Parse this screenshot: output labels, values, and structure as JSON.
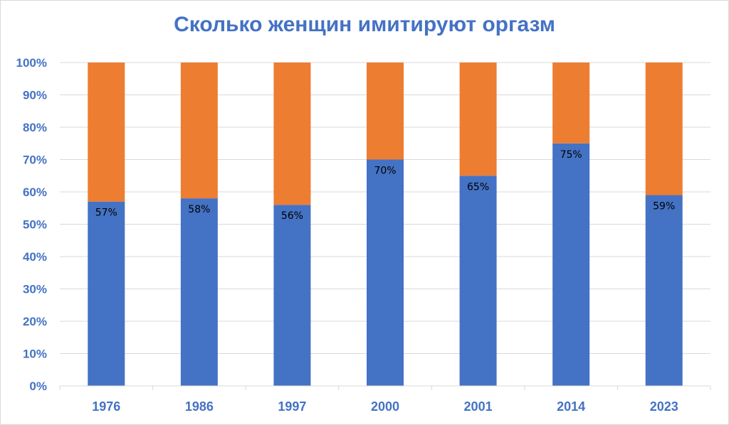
{
  "chart_data": {
    "type": "bar",
    "stacked": true,
    "title": "Сколько женщин имитируют оргазм",
    "xlabel": "",
    "ylabel": "",
    "ylim": [
      0,
      100
    ],
    "ytick_step": 10,
    "grid": true,
    "legend": "none",
    "categories": [
      "1976",
      "1986",
      "1997",
      "2000",
      "2001",
      "2014",
      "2023"
    ],
    "series": [
      {
        "color": "#4472c4",
        "values": [
          57,
          58,
          56,
          70,
          65,
          75,
          59
        ],
        "labels": [
          "57%",
          "58%",
          "56%",
          "70%",
          "65%",
          "75%",
          "59%"
        ]
      },
      {
        "color": "#ed7d31",
        "values": [
          43,
          42,
          44,
          30,
          35,
          25,
          41
        ]
      }
    ],
    "ytick_labels": [
      "0%",
      "10%",
      "20%",
      "30%",
      "40%",
      "50%",
      "60%",
      "70%",
      "80%",
      "90%",
      "100%"
    ]
  }
}
